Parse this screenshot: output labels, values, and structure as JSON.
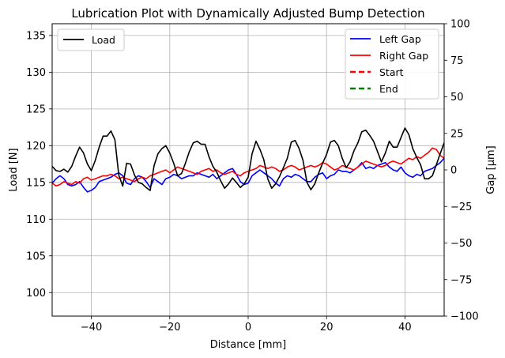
{
  "chart_data": {
    "type": "line",
    "title": "Lubrication Plot with Dynamically Adjusted Bump Detection",
    "xlabel": "Distance [mm]",
    "ylabel_left": "Load [N]",
    "ylabel_right": "Gap [µm]",
    "xlim": [
      -50,
      50
    ],
    "ylim_left": [
      96.8,
      136.6
    ],
    "ylim_right": [
      -100,
      100
    ],
    "x_ticks": [
      -40,
      -20,
      0,
      20,
      40
    ],
    "y_left_ticks": [
      100,
      105,
      110,
      115,
      120,
      125,
      130,
      135
    ],
    "y_right_ticks": [
      -100,
      -75,
      -50,
      -25,
      0,
      25,
      50,
      75,
      100
    ],
    "grid": true,
    "legend_left": {
      "placement": "upper-left",
      "entries": [
        {
          "name": "Load",
          "color": "#000000",
          "style": "solid"
        }
      ]
    },
    "legend_right": {
      "placement": "upper-right",
      "entries": [
        {
          "name": "Left Gap",
          "color": "#0000ff",
          "style": "solid"
        },
        {
          "name": "Right Gap",
          "color": "#ff0000",
          "style": "solid"
        },
        {
          "name": "Start",
          "color": "#ff0000",
          "style": "dashed"
        },
        {
          "name": "End",
          "color": "#008000",
          "style": "dashed"
        }
      ]
    },
    "series": [
      {
        "name": "Load",
        "axis": "left",
        "color": "#000000",
        "x": [
          -50,
          -49,
          -48,
          -47,
          -46,
          -45,
          -44,
          -43,
          -42,
          -41,
          -40,
          -39,
          -38,
          -37,
          -36,
          -35,
          -34,
          -33,
          -32,
          -31,
          -30,
          -29,
          -28,
          -27,
          -26,
          -25,
          -24,
          -23,
          -22,
          -21,
          -20,
          -19,
          -18,
          -17,
          -16,
          -15,
          -14,
          -13,
          -12,
          -11,
          -10,
          -9,
          -8,
          -7,
          -6,
          -5,
          -4,
          -3,
          -2,
          -1,
          0,
          1,
          2,
          3,
          4,
          5,
          6,
          7,
          8,
          9,
          10,
          11,
          12,
          13,
          14,
          15,
          16,
          17,
          18,
          19,
          20,
          21,
          22,
          23,
          24,
          25,
          26,
          27,
          28,
          29,
          30,
          31,
          32,
          33,
          34,
          35,
          36,
          37,
          38,
          39,
          40,
          41,
          42,
          43,
          44,
          45,
          46,
          47,
          48,
          49,
          50
        ],
        "values": [
          117.2,
          116.6,
          116.5,
          116.8,
          116.4,
          117.2,
          118.6,
          119.8,
          119.0,
          117.5,
          116.6,
          118.0,
          119.8,
          121.3,
          121.3,
          122.0,
          120.8,
          116.0,
          114.5,
          117.6,
          117.5,
          116.0,
          115.0,
          114.8,
          114.3,
          113.9,
          117.3,
          118.9,
          119.6,
          120.0,
          119.0,
          117.6,
          115.9,
          116.2,
          117.6,
          119.2,
          120.4,
          120.6,
          120.2,
          120.2,
          118.5,
          117.2,
          116.4,
          115.2,
          114.2,
          114.8,
          115.6,
          115.0,
          114.3,
          114.8,
          115.7,
          118.9,
          120.6,
          119.5,
          118.1,
          115.5,
          114.2,
          114.8,
          115.8,
          117.0,
          118.3,
          120.5,
          120.7,
          119.6,
          118.0,
          115.0,
          114.0,
          114.8,
          116.3,
          117.6,
          118.8,
          120.5,
          120.7,
          120.0,
          118.3,
          117.0,
          117.8,
          119.3,
          120.4,
          121.9,
          122.1,
          121.4,
          120.6,
          119.2,
          117.8,
          119.0,
          120.6,
          119.8,
          119.8,
          121.1,
          122.4,
          121.5,
          119.6,
          118.4,
          117.4,
          115.5,
          115.5,
          115.9,
          117.4,
          118.9,
          120.4
        ]
      },
      {
        "name": "Left Gap",
        "axis": "right",
        "color": "#0000ff",
        "x": [
          -50,
          -49,
          -48,
          -47,
          -46,
          -45,
          -44,
          -43,
          -42,
          -41,
          -40,
          -39,
          -38,
          -37,
          -36,
          -35,
          -34,
          -33,
          -32,
          -31,
          -30,
          -29,
          -28,
          -27,
          -26,
          -25,
          -24,
          -23,
          -22,
          -21,
          -20,
          -19,
          -18,
          -17,
          -16,
          -15,
          -14,
          -13,
          -12,
          -11,
          -10,
          -9,
          -8,
          -7,
          -6,
          -5,
          -4,
          -3,
          -2,
          -1,
          0,
          1,
          2,
          3,
          4,
          5,
          6,
          7,
          8,
          9,
          10,
          11,
          12,
          13,
          14,
          15,
          16,
          17,
          18,
          19,
          20,
          21,
          22,
          23,
          24,
          25,
          26,
          27,
          28,
          29,
          30,
          31,
          32,
          33,
          34,
          35,
          36,
          37,
          38,
          39,
          40,
          41,
          42,
          43,
          44,
          45,
          46,
          47,
          48,
          49,
          50
        ],
        "values": [
          -9,
          -6,
          -4,
          -6,
          -10,
          -11,
          -10,
          -8,
          -12,
          -15,
          -14,
          -12,
          -8,
          -7,
          -6,
          -5,
          -3,
          -2,
          -4,
          -9,
          -10,
          -6,
          -4,
          -5,
          -8,
          -12,
          -6,
          -8,
          -10,
          -6,
          -5,
          -3,
          -4,
          -6,
          -5,
          -4,
          -4,
          -2,
          -3,
          -4,
          -5,
          -3,
          -6,
          -4,
          -2,
          0,
          1,
          -3,
          -8,
          -10,
          -9,
          -4,
          -2,
          0,
          -2,
          -4,
          -6,
          -9,
          -11,
          -6,
          -4,
          -5,
          -3,
          -4,
          -6,
          -8,
          -8,
          -5,
          -3,
          -2,
          -6,
          -4,
          -3,
          0,
          -1,
          -1,
          -2,
          0,
          2,
          5,
          1,
          2,
          1,
          3,
          4,
          5,
          2,
          0,
          -1,
          2,
          -2,
          -4,
          -5,
          -3,
          -4,
          -1,
          0,
          1,
          3,
          5,
          8
        ]
      },
      {
        "name": "Right Gap",
        "axis": "right",
        "color": "#ff0000",
        "x": [
          -50,
          -49,
          -48,
          -47,
          -46,
          -45,
          -44,
          -43,
          -42,
          -41,
          -40,
          -39,
          -38,
          -37,
          -36,
          -35,
          -34,
          -33,
          -32,
          -31,
          -30,
          -29,
          -28,
          -27,
          -26,
          -25,
          -24,
          -23,
          -22,
          -21,
          -20,
          -19,
          -18,
          -17,
          -16,
          -15,
          -14,
          -13,
          -12,
          -11,
          -10,
          -9,
          -8,
          -7,
          -6,
          -5,
          -4,
          -3,
          -2,
          -1,
          0,
          1,
          2,
          3,
          4,
          5,
          6,
          7,
          8,
          9,
          10,
          11,
          12,
          13,
          14,
          15,
          16,
          17,
          18,
          19,
          20,
          21,
          22,
          23,
          24,
          25,
          26,
          27,
          28,
          29,
          30,
          31,
          32,
          33,
          34,
          35,
          36,
          37,
          38,
          39,
          40,
          41,
          42,
          43,
          44,
          45,
          46,
          47,
          48,
          49,
          50
        ],
        "values": [
          -9,
          -11,
          -10,
          -8,
          -9,
          -10,
          -8,
          -9,
          -6,
          -5,
          -7,
          -6,
          -5,
          -4,
          -4,
          -3,
          -4,
          -6,
          -5,
          -6,
          -7,
          -8,
          -6,
          -5,
          -6,
          -4,
          -3,
          -2,
          -1,
          0,
          -2,
          0,
          2,
          1,
          0,
          -1,
          -2,
          -3,
          -1,
          0,
          1,
          -1,
          0,
          -2,
          -3,
          -2,
          -1,
          -3,
          -4,
          -2,
          -1,
          0,
          1,
          3,
          2,
          1,
          2,
          1,
          -1,
          0,
          2,
          3,
          2,
          0,
          1,
          2,
          3,
          2,
          3,
          5,
          4,
          2,
          0,
          1,
          3,
          2,
          1,
          0,
          2,
          4,
          6,
          5,
          4,
          3,
          2,
          3,
          5,
          6,
          5,
          4,
          6,
          8,
          7,
          9,
          8,
          10,
          12,
          15,
          14,
          10,
          8
        ]
      }
    ]
  }
}
